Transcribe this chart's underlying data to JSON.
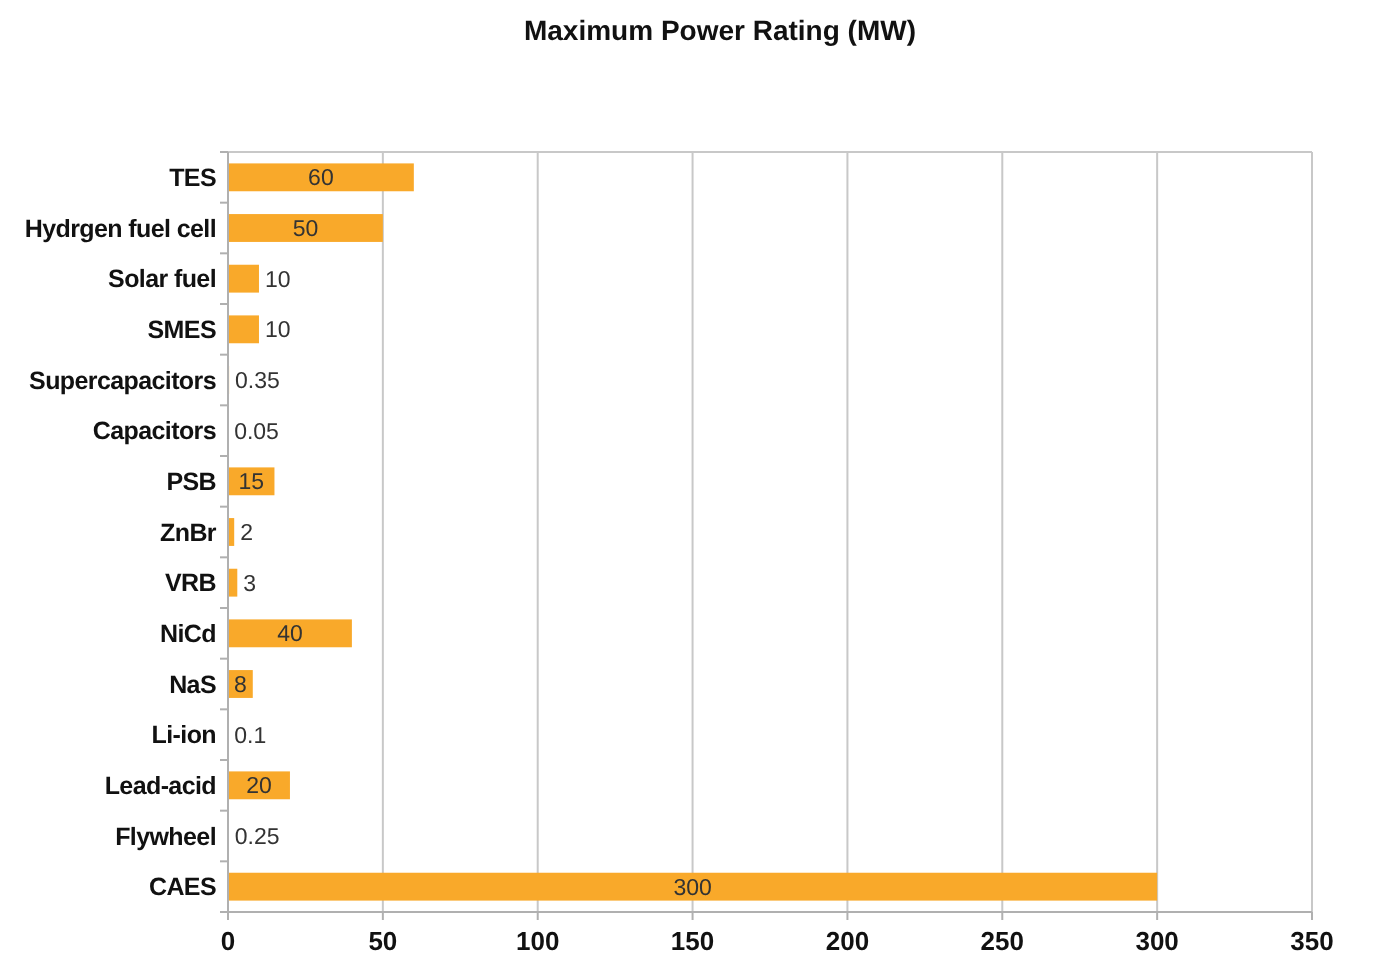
{
  "chart_data": {
    "type": "bar",
    "orientation": "horizontal",
    "title": "Maximum Power Rating (MW)",
    "categories": [
      "TES",
      "Hydrgen fuel cell",
      "Solar fuel",
      "SMES",
      "Supercapacitors",
      "Capacitors",
      "PSB",
      "ZnBr",
      "VRB",
      "NiCd",
      "NaS",
      "Li-ion",
      "Lead-acid",
      "Flywheel",
      "CAES"
    ],
    "values": [
      60,
      50,
      10,
      10,
      0.35,
      0.05,
      15,
      2,
      3,
      40,
      8,
      0.1,
      20,
      0.25,
      300
    ],
    "color": "#f9a92a",
    "xlim": [
      0,
      350
    ],
    "xticks": [
      0,
      50,
      100,
      150,
      200,
      250,
      300,
      350
    ],
    "grid": "x",
    "data_labels": true
  }
}
